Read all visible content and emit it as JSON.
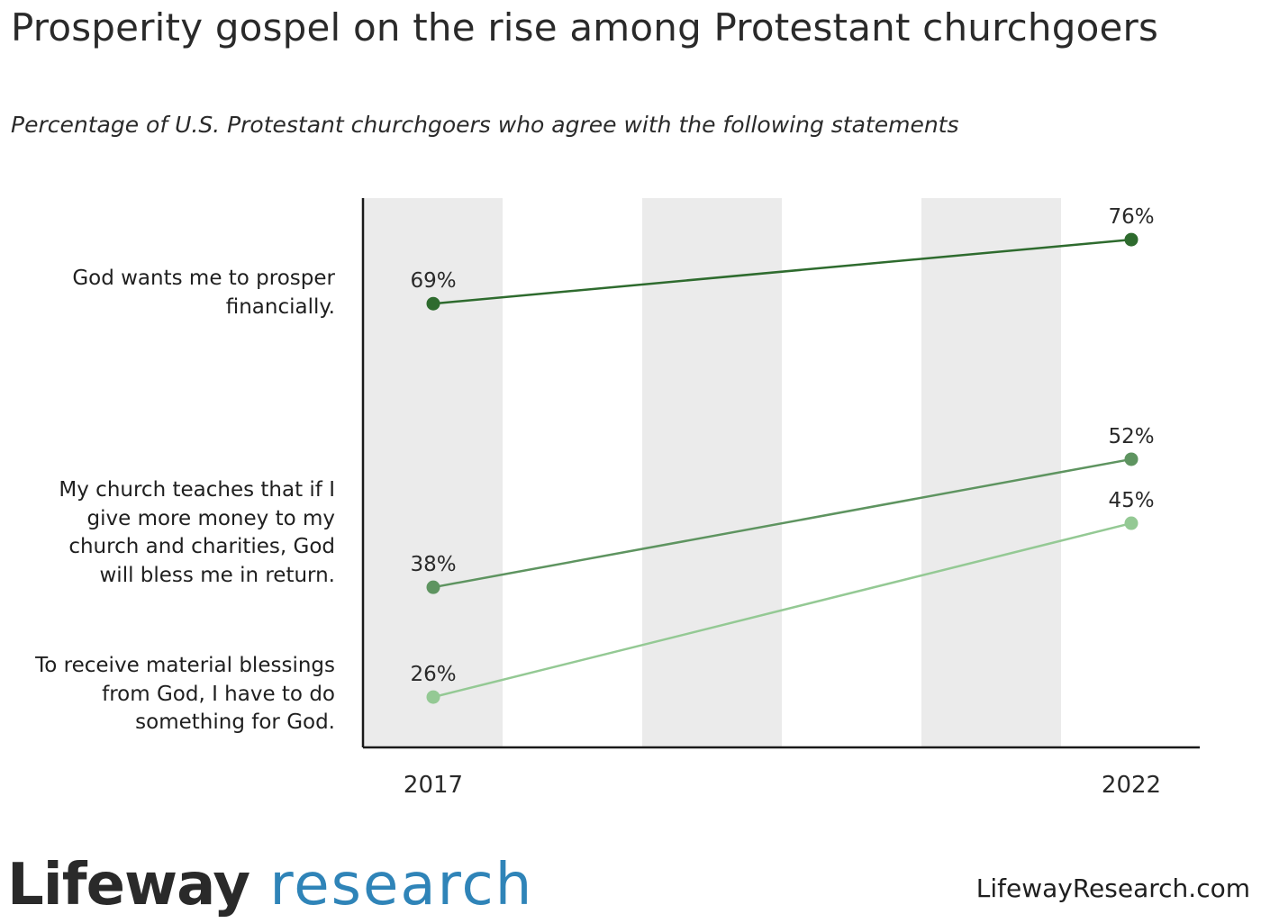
{
  "title": "Prosperity gospel on the rise among Protestant churchgoers",
  "subtitle": "Percentage of U.S. Protestant churchgoers who agree with the following statements",
  "chart_data": {
    "type": "line",
    "x": [
      "2017",
      "2022"
    ],
    "ylim": [
      20,
      80
    ],
    "grid": "alternating vertical bands",
    "series": [
      {
        "name": "God wants me to prosper financially.",
        "values": [
          69,
          76
        ],
        "labels": [
          "69%",
          "76%"
        ],
        "color": "#2e6b2e"
      },
      {
        "name": "My church teaches that if I give more money to my church and charities, God will bless me in return.",
        "values": [
          38,
          52
        ],
        "labels": [
          "38%",
          "52%"
        ],
        "color": "#5e9460"
      },
      {
        "name": "To receive material blessings from God, I have to do something for God.",
        "values": [
          26,
          45
        ],
        "labels": [
          "26%",
          "45%"
        ],
        "color": "#94c994"
      }
    ]
  },
  "row_labels": [
    [
      "God wants me to prosper",
      "financially."
    ],
    [
      "My church teaches that if I",
      "give more money to my",
      "church and charities, God",
      "will bless me in return."
    ],
    [
      "To receive material blessings",
      "from God, I have to do",
      "something for God."
    ]
  ],
  "footer": {
    "logo_brand": "Lifeway",
    "logo_suffix": " research",
    "site": "LifewayResearch.com"
  },
  "colors": {
    "band": "#ebebeb",
    "axis": "#1a1a1a",
    "logo_blue": "#2f84b8"
  }
}
